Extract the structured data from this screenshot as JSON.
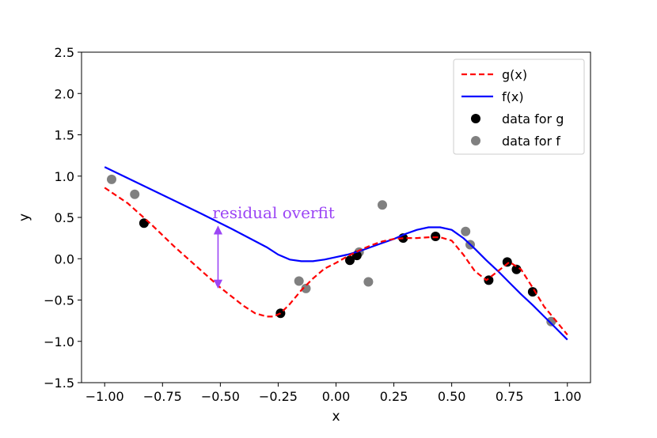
{
  "chart_data": {
    "type": "line",
    "xlabel": "x",
    "ylabel": "y",
    "xlim": [
      -1.1,
      1.1
    ],
    "ylim": [
      -1.5,
      2.5
    ],
    "xticks": [
      -1.0,
      -0.75,
      -0.5,
      -0.25,
      0.0,
      0.25,
      0.5,
      0.75,
      1.0
    ],
    "xtick_labels": [
      "−1.00",
      "−0.75",
      "−0.50",
      "−0.25",
      "0.00",
      "0.25",
      "0.50",
      "0.75",
      "1.00"
    ],
    "yticks": [
      -1.5,
      -1.0,
      -0.5,
      0.0,
      0.5,
      1.0,
      1.5,
      2.0,
      2.5
    ],
    "ytick_labels": [
      "−1.5",
      "−1.0",
      "−0.5",
      "0.0",
      "0.5",
      "1.0",
      "1.5",
      "2.0",
      "2.5"
    ],
    "grid": false,
    "legend_position": "top-right",
    "series": [
      {
        "name": "g(x)",
        "kind": "line",
        "style": "dashed",
        "color": "#ff0000",
        "x": [
          -1.0,
          -0.9,
          -0.8,
          -0.7,
          -0.6,
          -0.5,
          -0.4,
          -0.35,
          -0.3,
          -0.27,
          -0.24,
          -0.2,
          -0.15,
          -0.1,
          -0.05,
          0.0,
          0.05,
          0.1,
          0.15,
          0.2,
          0.25,
          0.3,
          0.35,
          0.4,
          0.45,
          0.5,
          0.55,
          0.6,
          0.65,
          0.7,
          0.75,
          0.8,
          0.85,
          0.9,
          0.95,
          1.0
        ],
        "y": [
          0.86,
          0.67,
          0.42,
          0.15,
          -0.1,
          -0.35,
          -0.57,
          -0.66,
          -0.7,
          -0.7,
          -0.66,
          -0.55,
          -0.38,
          -0.24,
          -0.12,
          -0.05,
          0.03,
          0.1,
          0.16,
          0.21,
          0.24,
          0.25,
          0.25,
          0.26,
          0.26,
          0.22,
          0.05,
          -0.15,
          -0.26,
          -0.15,
          -0.04,
          -0.13,
          -0.35,
          -0.58,
          -0.75,
          -0.92
        ]
      },
      {
        "name": "f(x)",
        "kind": "line",
        "style": "solid",
        "color": "#0000ff",
        "x": [
          -1.0,
          -0.8,
          -0.6,
          -0.45,
          -0.3,
          -0.25,
          -0.2,
          -0.15,
          -0.1,
          -0.05,
          0.0,
          0.05,
          0.1,
          0.15,
          0.2,
          0.25,
          0.3,
          0.35,
          0.4,
          0.45,
          0.5,
          0.55,
          0.6,
          0.65,
          0.7,
          0.75,
          0.8,
          0.85,
          0.9,
          0.95,
          1.0
        ],
        "y": [
          1.11,
          0.84,
          0.57,
          0.36,
          0.14,
          0.05,
          -0.01,
          -0.03,
          -0.03,
          -0.01,
          0.02,
          0.05,
          0.09,
          0.14,
          0.19,
          0.24,
          0.3,
          0.35,
          0.38,
          0.38,
          0.35,
          0.25,
          0.12,
          -0.02,
          -0.15,
          -0.29,
          -0.43,
          -0.56,
          -0.7,
          -0.84,
          -0.98
        ]
      },
      {
        "name": "data for g",
        "kind": "scatter",
        "color": "#000000",
        "x": [
          -0.83,
          -0.24,
          0.06,
          0.09,
          0.29,
          0.43,
          0.66,
          0.74,
          0.78,
          0.85
        ],
        "y": [
          0.43,
          -0.66,
          -0.02,
          0.04,
          0.25,
          0.27,
          -0.26,
          -0.04,
          -0.13,
          -0.4
        ]
      },
      {
        "name": "data for f",
        "kind": "scatter",
        "color": "#808080",
        "x": [
          -0.97,
          -0.87,
          -0.16,
          -0.13,
          0.1,
          0.14,
          0.2,
          0.56,
          0.58,
          0.93
        ],
        "y": [
          0.96,
          0.78,
          -0.27,
          -0.36,
          0.08,
          -0.28,
          0.65,
          0.33,
          0.17,
          -0.76
        ]
      }
    ],
    "annotation": {
      "text": "residual overfit",
      "color": "#9b45f5",
      "x": -0.51,
      "y_from": 0.39,
      "y_to": -0.35,
      "text_x": -0.27,
      "text_y": 0.55
    }
  }
}
